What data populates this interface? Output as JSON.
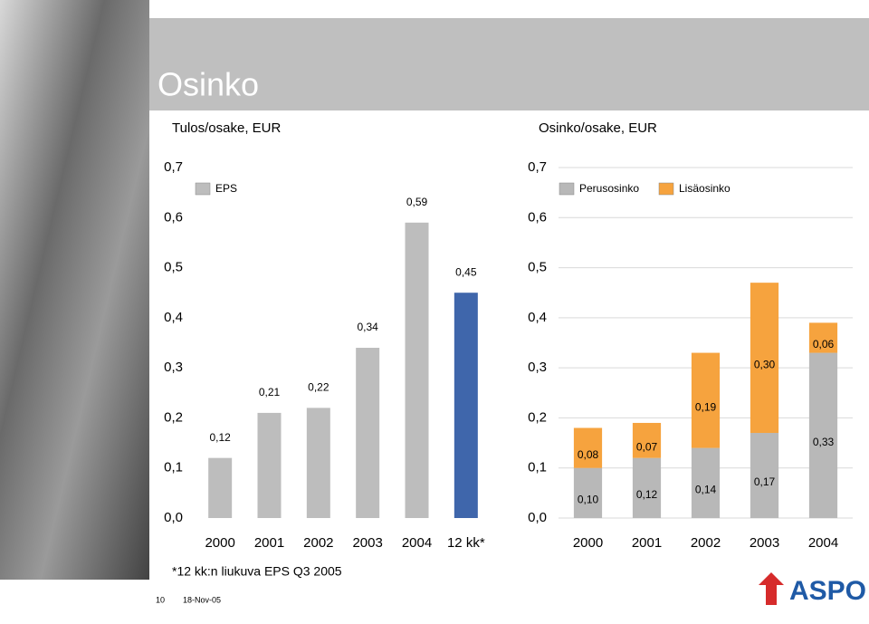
{
  "title": "Osinko",
  "footnote": "*12 kk:n liukuva EPS Q3 2005",
  "page_number": "10",
  "date": "18-Nov-05",
  "logo": "ASPO",
  "chart_data": [
    {
      "type": "bar",
      "title": "Tulos/osake, EUR",
      "categories": [
        "2000",
        "2001",
        "2002",
        "2003",
        "2004",
        "12 kk*"
      ],
      "series": [
        {
          "name": "EPS",
          "color": "#bdbdbd",
          "colors": [
            "#bdbdbd",
            "#bdbdbd",
            "#bdbdbd",
            "#bdbdbd",
            "#bdbdbd",
            "#3f66ab"
          ],
          "values": [
            0.12,
            0.21,
            0.22,
            0.34,
            0.59,
            0.45
          ],
          "value_labels": [
            "0,12",
            "0,21",
            "0,22",
            "0,34",
            "0,59",
            "0,45"
          ]
        }
      ],
      "ylim": [
        0,
        0.7
      ],
      "yticks": [
        {
          "value": 0,
          "label": "0,0"
        },
        {
          "value": 0.1,
          "label": "0,1"
        },
        {
          "value": 0.2,
          "label": "0,2"
        },
        {
          "value": 0.3,
          "label": "0,3"
        },
        {
          "value": 0.4,
          "label": "0,4"
        },
        {
          "value": 0.5,
          "label": "0,5"
        },
        {
          "value": 0.6,
          "label": "0,6"
        },
        {
          "value": 0.7,
          "label": "0,7"
        }
      ],
      "grid": false
    },
    {
      "type": "stacked_bar",
      "title": "Osinko/osake, EUR",
      "categories": [
        "2000",
        "2001",
        "2002",
        "2003",
        "2004"
      ],
      "series": [
        {
          "name": "Perusosinko",
          "color": "#b8b8b8",
          "values": [
            0.1,
            0.12,
            0.14,
            0.17,
            0.33
          ],
          "value_labels": [
            "0,10",
            "0,12",
            "0,14",
            "0,17",
            "0,33"
          ]
        },
        {
          "name": "Lisäosinko",
          "color": "#f6a33e",
          "values": [
            0.08,
            0.07,
            0.19,
            0.3,
            0.06
          ],
          "value_labels": [
            "0,08",
            "0,07",
            "0,19",
            "0,30",
            "0,06"
          ]
        }
      ],
      "ylim": [
        0,
        0.7
      ],
      "yticks": [
        {
          "value": 0,
          "label": "0,0"
        },
        {
          "value": 0.1,
          "label": "0,1"
        },
        {
          "value": 0.2,
          "label": "0,2"
        },
        {
          "value": 0.3,
          "label": "0,3"
        },
        {
          "value": 0.4,
          "label": "0,4"
        },
        {
          "value": 0.5,
          "label": "0,5"
        },
        {
          "value": 0.6,
          "label": "0,6"
        },
        {
          "value": 0.7,
          "label": "0,7"
        }
      ],
      "grid": true
    }
  ]
}
